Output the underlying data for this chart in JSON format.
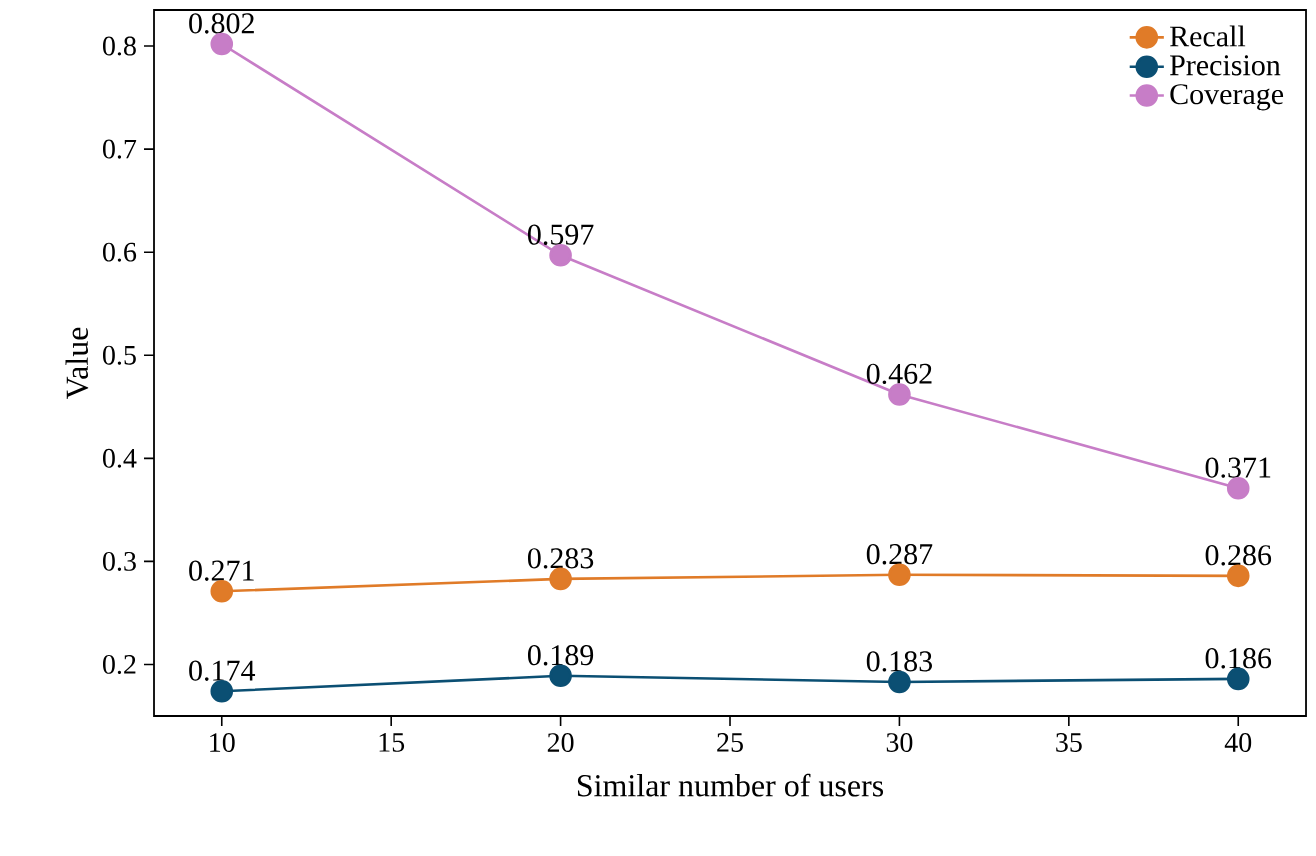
{
  "chart_data": {
    "type": "line",
    "xlabel": "Similar number of users",
    "ylabel": "Value",
    "x": [
      10,
      20,
      30,
      40
    ],
    "series": [
      {
        "name": "Recall",
        "color": "#e07b28",
        "values": [
          0.271,
          0.283,
          0.287,
          0.286
        ]
      },
      {
        "name": "Precision",
        "color": "#0b4f73",
        "values": [
          0.174,
          0.189,
          0.183,
          0.186
        ]
      },
      {
        "name": "Coverage",
        "color": "#c77dc7",
        "values": [
          0.802,
          0.597,
          0.462,
          0.371
        ]
      }
    ],
    "xlim": [
      8,
      42
    ],
    "ylim": [
      0.15,
      0.835
    ],
    "xticks": [
      10,
      15,
      20,
      25,
      30,
      35,
      40
    ],
    "yticks": [
      0.2,
      0.3,
      0.4,
      0.5,
      0.6,
      0.7,
      0.8
    ],
    "grid": false,
    "legend": "top right",
    "marker": "circle",
    "line_style": "solid",
    "data_labels": true
  }
}
